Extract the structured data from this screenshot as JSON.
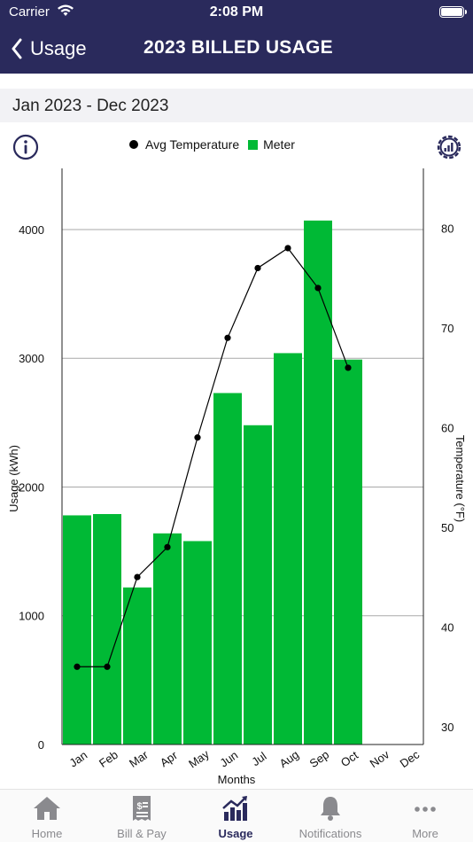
{
  "status": {
    "carrier": "Carrier",
    "time": "2:08 PM"
  },
  "nav": {
    "back_label": "Usage",
    "title": "2023 BILLED USAGE"
  },
  "range": {
    "label": "Jan 2023 - Dec 2023"
  },
  "legend": {
    "temperature": "Avg Temperature",
    "meter": "Meter"
  },
  "chart_data": {
    "type": "bar",
    "categories": [
      "Jan",
      "Feb",
      "Mar",
      "Apr",
      "May",
      "Jun",
      "Jul",
      "Aug",
      "Sep",
      "Oct",
      "Nov",
      "Dec"
    ],
    "series": [
      {
        "name": "Meter",
        "type": "bar",
        "axis": "left",
        "color": "#00b935",
        "values": [
          1780,
          1790,
          1220,
          1640,
          1580,
          2730,
          2480,
          3040,
          4070,
          2990,
          null,
          null
        ]
      },
      {
        "name": "Avg Temperature",
        "type": "line",
        "axis": "right",
        "color": "#000000",
        "values": [
          36,
          36,
          45,
          48,
          59,
          69,
          76,
          78,
          74,
          66,
          null,
          null
        ]
      }
    ],
    "xlabel": "Months",
    "ylabel": "Usage (kWh)",
    "y2label": "Temperature (°F)",
    "ylim": [
      0,
      4000
    ],
    "yticks": [
      0,
      1000,
      2000,
      3000,
      4000
    ],
    "y2ticks": [
      30,
      40,
      50,
      60,
      70,
      80
    ],
    "grid": true,
    "legend_position": "top"
  },
  "tabs": [
    {
      "label": "Home",
      "icon": "home-icon",
      "active": false
    },
    {
      "label": "Bill & Pay",
      "icon": "bill-icon",
      "active": false
    },
    {
      "label": "Usage",
      "icon": "usage-chart-icon",
      "active": true
    },
    {
      "label": "Notifications",
      "icon": "bell-icon",
      "active": false
    },
    {
      "label": "More",
      "icon": "more-icon",
      "active": false
    }
  ],
  "colors": {
    "brand": "#2a2a5c",
    "meter": "#00b935",
    "inactive": "#8a8a8e"
  }
}
